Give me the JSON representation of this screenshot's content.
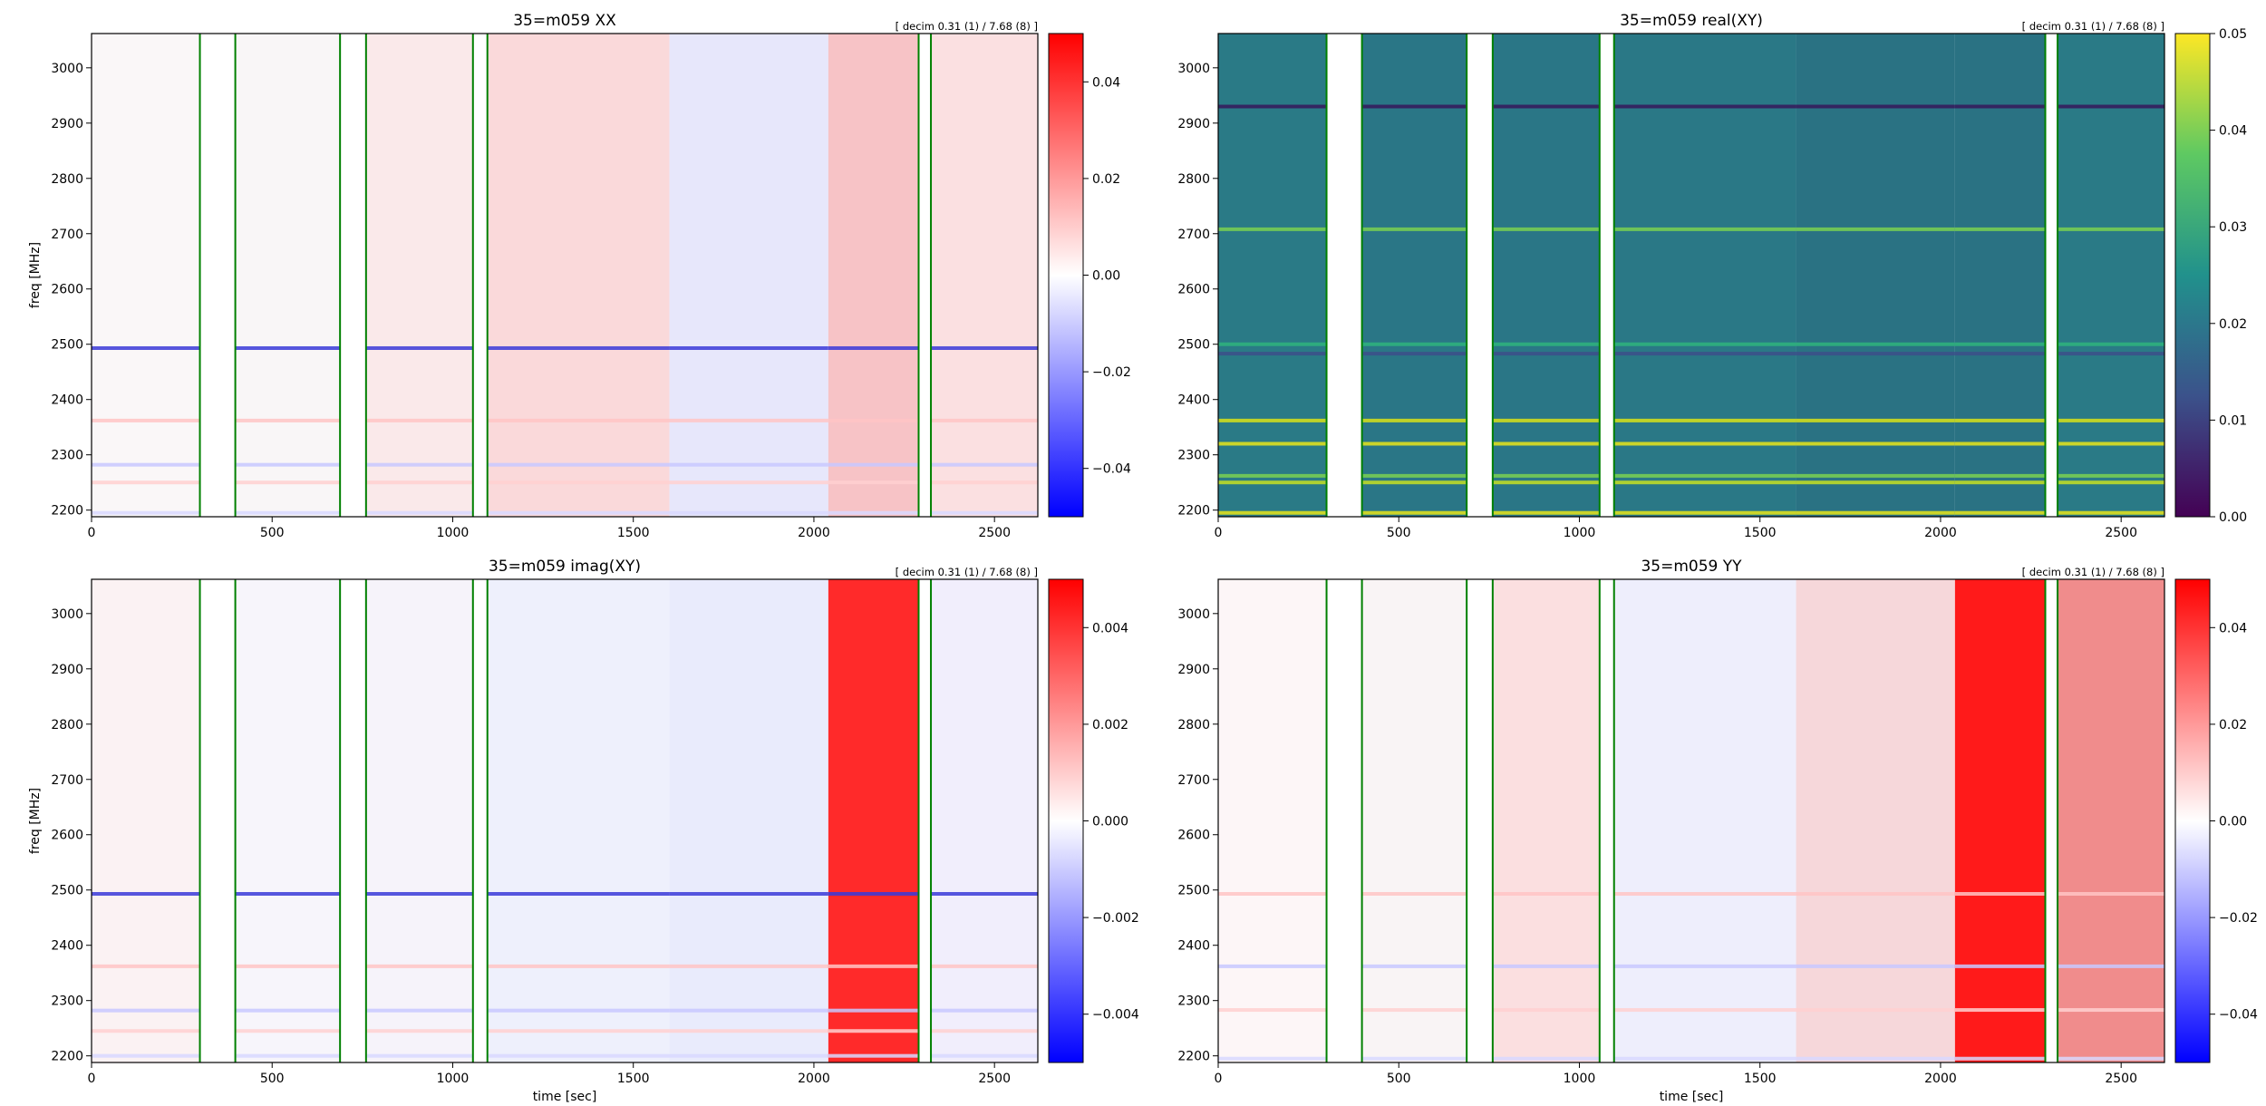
{
  "chart_data": [
    {
      "type": "heatmap",
      "title": "35=m059  XX",
      "annotation": "[ decim 0.31 (1) / 7.68 (8) ]",
      "xlabel": "",
      "ylabel": "freq [MHz]",
      "xlim": [
        0,
        2620
      ],
      "ylim": [
        2188,
        3062
      ],
      "xticks": [
        0,
        500,
        1000,
        1500,
        2000,
        2500
      ],
      "yticks": [
        2200,
        2300,
        2400,
        2500,
        2600,
        2700,
        2800,
        2900,
        3000
      ],
      "colormap": "bwr",
      "clim": [
        -0.05,
        0.05
      ],
      "colorbar_ticks": [
        "0.04",
        "0.02",
        "0.00",
        "−0.02",
        "−0.04"
      ],
      "colorbar_values": [
        0.04,
        0.02,
        0.0,
        -0.02,
        -0.04
      ],
      "separators_x": [
        300,
        398,
        688,
        760,
        1056,
        1096,
        2290,
        2324
      ],
      "separator_color": "#008000",
      "scan_colors": [
        "#faf7f8",
        "#f9f6f7",
        "#fae9ea",
        "#fad9da",
        "#e7e7fb",
        "#f7c3c6",
        "#fbe0e1"
      ],
      "band_freqs_mhz": [
        2195,
        2250,
        2282,
        2362,
        2493
      ]
    },
    {
      "type": "heatmap",
      "title": "35=m059  real(XY)",
      "annotation": "[ decim 0.31 (1) / 7.68 (8) ]",
      "xlabel": "",
      "ylabel": "",
      "xlim": [
        0,
        2620
      ],
      "ylim": [
        2188,
        3062
      ],
      "xticks": [
        0,
        500,
        1000,
        1500,
        2000,
        2500
      ],
      "yticks": [
        2200,
        2300,
        2400,
        2500,
        2600,
        2700,
        2800,
        2900,
        3000
      ],
      "colormap": "viridis",
      "clim": [
        0.0,
        0.05
      ],
      "colorbar_ticks": [
        "0.05",
        "0.04",
        "0.03",
        "0.02",
        "0.01",
        "0.00"
      ],
      "colorbar_values": [
        0.05,
        0.04,
        0.03,
        0.02,
        0.01,
        0.0
      ],
      "separators_x": [
        300,
        398,
        688,
        760,
        1056,
        1096,
        2290,
        2324
      ],
      "separator_color": "#008000",
      "scan_colors": [
        "#2a7a86",
        "#2a7686",
        "#2a7686",
        "#2a7886",
        "#2a7283",
        "#2a7283",
        "#2a7a86"
      ],
      "band_freqs_mhz": [
        2195,
        2250,
        2262,
        2320,
        2362,
        2483,
        2500,
        2708,
        2930
      ]
    },
    {
      "type": "heatmap",
      "title": "35=m059  imag(XY)",
      "annotation": "[ decim 0.31 (1) / 7.68 (8) ]",
      "xlabel": "time [sec]",
      "ylabel": "freq [MHz]",
      "xlim": [
        0,
        2620
      ],
      "ylim": [
        2188,
        3062
      ],
      "xticks": [
        0,
        500,
        1000,
        1500,
        2000,
        2500
      ],
      "yticks": [
        2200,
        2300,
        2400,
        2500,
        2600,
        2700,
        2800,
        2900,
        3000
      ],
      "colormap": "bwr",
      "clim": [
        -0.005,
        0.005
      ],
      "colorbar_ticks": [
        "0.004",
        "0.002",
        "0.000",
        "−0.002",
        "−0.004"
      ],
      "colorbar_values": [
        0.004,
        0.002,
        0.0,
        -0.002,
        -0.004
      ],
      "separators_x": [
        300,
        398,
        688,
        760,
        1056,
        1096,
        2290,
        2324
      ],
      "separator_color": "#008000",
      "scan_colors": [
        "#fbf2f3",
        "#f7f5fb",
        "#f6f3fa",
        "#eef0fc",
        "#e9ebfc",
        "#ff2a2a",
        "#f1eefc"
      ],
      "band_freqs_mhz": [
        2200,
        2245,
        2282,
        2362,
        2493
      ]
    },
    {
      "type": "heatmap",
      "title": "35=m059  YY",
      "annotation": "[ decim 0.31 (1) / 7.68 (8) ]",
      "xlabel": "time [sec]",
      "ylabel": "",
      "xlim": [
        0,
        2620
      ],
      "ylim": [
        2188,
        3062
      ],
      "xticks": [
        0,
        500,
        1000,
        1500,
        2000,
        2500
      ],
      "yticks": [
        2200,
        2300,
        2400,
        2500,
        2600,
        2700,
        2800,
        2900,
        3000
      ],
      "colormap": "bwr",
      "clim": [
        -0.05,
        0.05
      ],
      "colorbar_ticks": [
        "0.04",
        "0.02",
        "0.00",
        "−0.02",
        "−0.04"
      ],
      "colorbar_values": [
        0.04,
        0.02,
        0.0,
        -0.02,
        -0.04
      ],
      "separators_x": [
        300,
        398,
        688,
        760,
        1056,
        1096,
        2290,
        2324
      ],
      "separator_color": "#008000",
      "scan_colors": [
        "#fdf6f7",
        "#f9f4f5",
        "#fbdfe0",
        "#eeeefc",
        "#f6d7da",
        "#ff1a1a",
        "#f08c8c"
      ],
      "band_freqs_mhz": [
        2195,
        2283,
        2362,
        2493
      ]
    }
  ]
}
